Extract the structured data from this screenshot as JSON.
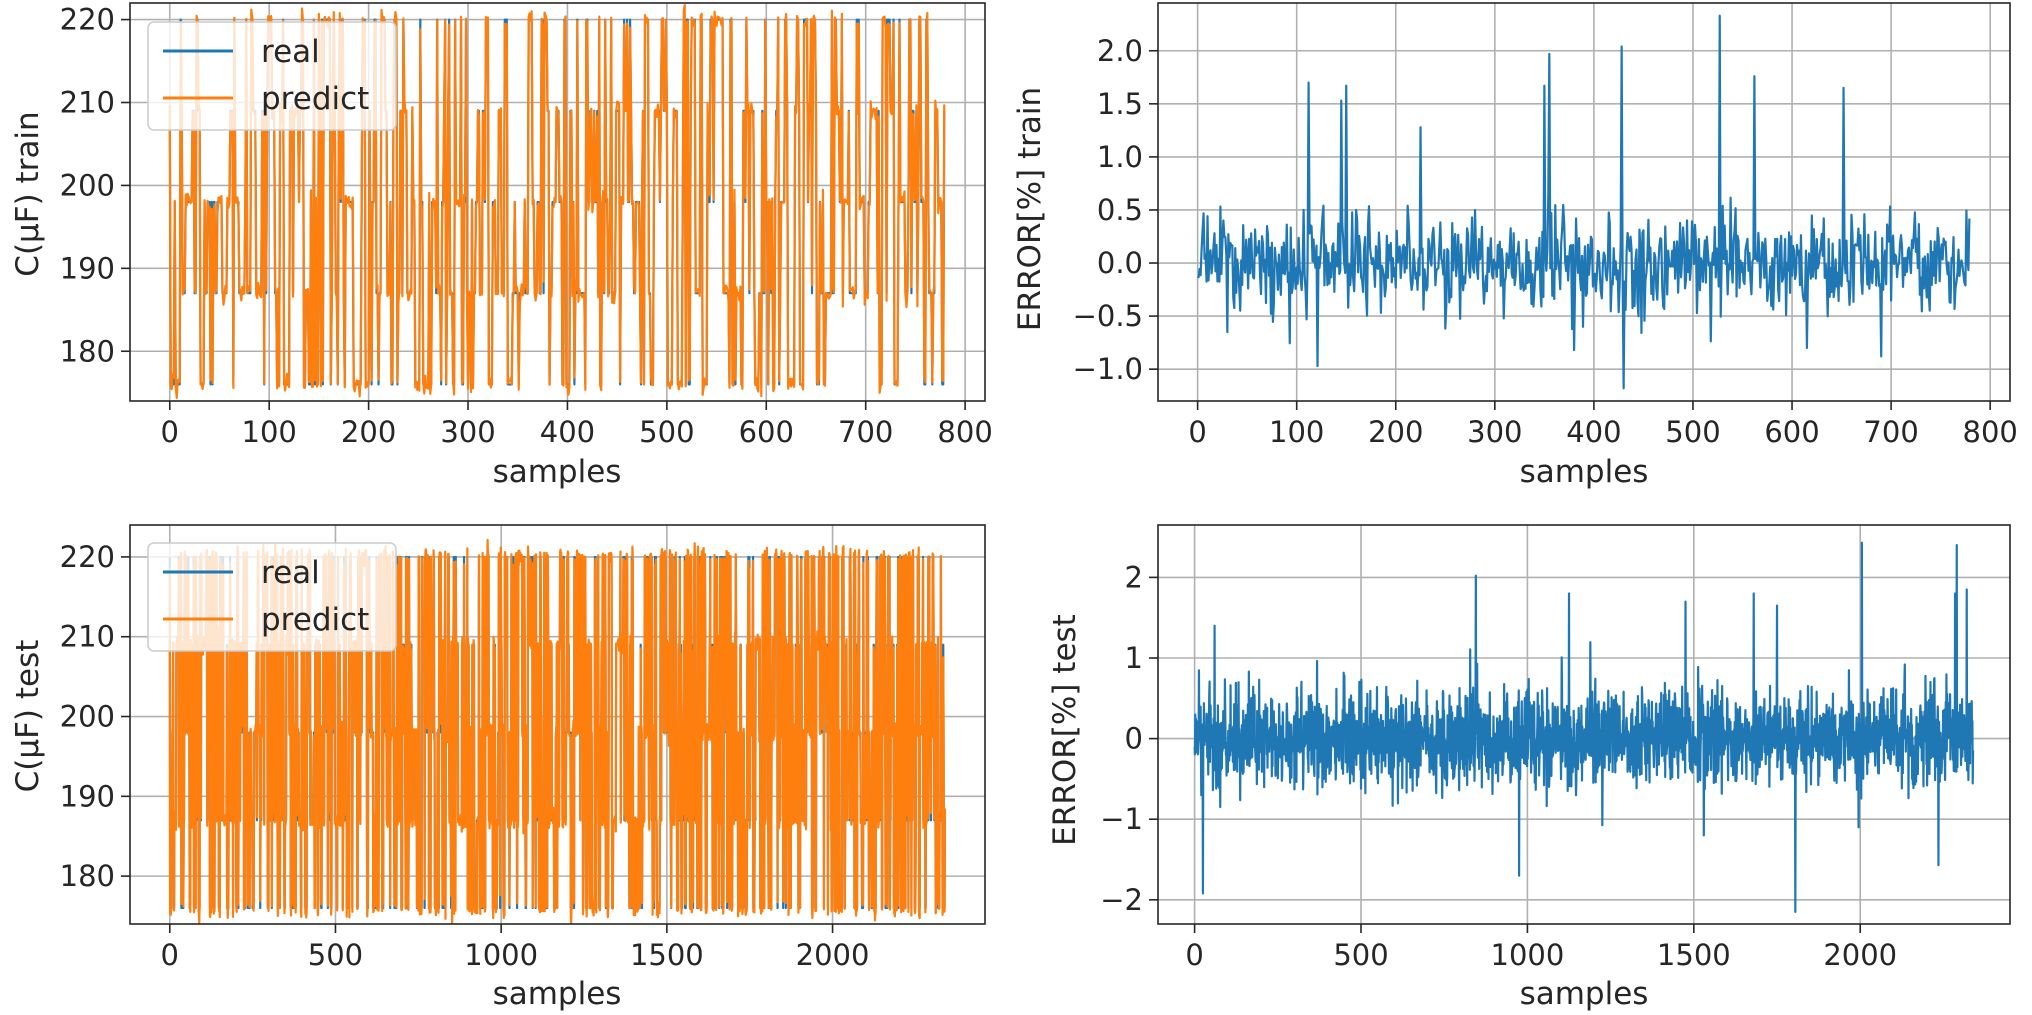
{
  "figure": {
    "description_panels": 4,
    "colors": {
      "real": "#1f77b4",
      "predict": "#ff7f0e",
      "error": "#1f77b4",
      "grid": "#b0b0b0",
      "axis": "#262626"
    }
  },
  "chart_data": [
    {
      "id": "cap-train",
      "type": "line",
      "xlabel": "samples",
      "ylabel": "C(μF) train",
      "xlim": [
        -40,
        820
      ],
      "ylim": [
        174,
        222
      ],
      "xticks": [
        0,
        100,
        200,
        300,
        400,
        500,
        600,
        700,
        800
      ],
      "yticks": [
        180,
        190,
        200,
        210,
        220
      ],
      "grid": true,
      "legend": {
        "placement": "upper-left",
        "entries": [
          "real",
          "predict"
        ]
      },
      "n_samples": 780,
      "levels": [
        176,
        187,
        198,
        209,
        220
      ],
      "series": [
        {
          "name": "real",
          "color": "#1f77b4",
          "description": "capacitance switching between ~176, 187, 198, 209, 220 μF"
        },
        {
          "name": "predict",
          "color": "#ff7f0e",
          "description": "prediction closely tracking real values with small noise"
        }
      ]
    },
    {
      "id": "err-train",
      "type": "line",
      "xlabel": "samples",
      "ylabel": "ERROR[%]  train",
      "xlim": [
        -40,
        820
      ],
      "ylim": [
        -1.3,
        2.45
      ],
      "xticks": [
        0,
        100,
        200,
        300,
        400,
        500,
        600,
        700,
        800
      ],
      "yticks": [
        -1.0,
        -0.5,
        0.0,
        0.5,
        1.0,
        1.5,
        2.0
      ],
      "ytick_labels": [
        "−1.0",
        "−0.5",
        "0.0",
        "0.5",
        "1.0",
        "1.5",
        "2.0"
      ],
      "grid": true,
      "n_samples": 780,
      "peaks": [
        [
          112,
          1.7
        ],
        [
          145,
          1.53
        ],
        [
          150,
          1.67
        ],
        [
          225,
          1.28
        ],
        [
          350,
          1.67
        ],
        [
          355,
          1.97
        ],
        [
          428,
          2.04
        ],
        [
          527,
          2.33
        ],
        [
          562,
          1.76
        ],
        [
          652,
          1.65
        ]
      ],
      "troughs": [
        [
          121,
          -0.97
        ],
        [
          430,
          -1.18
        ],
        [
          380,
          -0.82
        ],
        [
          615,
          -0.8
        ],
        [
          690,
          -0.88
        ]
      ],
      "series": [
        {
          "name": "error",
          "color": "#1f77b4"
        }
      ]
    },
    {
      "id": "cap-test",
      "type": "line",
      "xlabel": "samples",
      "ylabel": "C(μF) test",
      "xlim": [
        -120,
        2460
      ],
      "ylim": [
        174,
        224
      ],
      "xticks": [
        0,
        500,
        1000,
        1500,
        2000
      ],
      "yticks": [
        180,
        190,
        200,
        210,
        220
      ],
      "grid": true,
      "legend": {
        "placement": "upper-left",
        "entries": [
          "real",
          "predict"
        ]
      },
      "n_samples": 2340,
      "levels": [
        176,
        187,
        198,
        209,
        220
      ],
      "series": [
        {
          "name": "real",
          "color": "#1f77b4",
          "description": "capacitance switching between ~176, 187, 198, 209, 220 μF"
        },
        {
          "name": "predict",
          "color": "#ff7f0e",
          "description": "prediction closely tracking real values with small noise"
        }
      ]
    },
    {
      "id": "err-test",
      "type": "line",
      "xlabel": "samples",
      "ylabel": "ERROR[%] test",
      "xlim": [
        -110,
        2450
      ],
      "ylim": [
        -2.3,
        2.65
      ],
      "xticks": [
        0,
        500,
        1000,
        1500,
        2000
      ],
      "yticks": [
        -2,
        -1,
        0,
        1,
        2
      ],
      "ytick_labels": [
        "−2",
        "−1",
        "0",
        "1",
        "2"
      ],
      "grid": true,
      "n_samples": 2340,
      "peaks": [
        [
          60,
          1.4
        ],
        [
          845,
          2.02
        ],
        [
          1125,
          1.8
        ],
        [
          1475,
          1.7
        ],
        [
          1680,
          1.8
        ],
        [
          1750,
          1.65
        ],
        [
          2005,
          2.43
        ],
        [
          2290,
          2.4
        ],
        [
          2320,
          1.85
        ],
        [
          2285,
          1.8
        ]
      ],
      "troughs": [
        [
          25,
          -1.92
        ],
        [
          975,
          -1.7
        ],
        [
          1805,
          -2.15
        ],
        [
          2235,
          -1.57
        ],
        [
          1530,
          -1.2
        ],
        [
          1995,
          -1.1
        ]
      ],
      "series": [
        {
          "name": "error",
          "color": "#1f77b4"
        }
      ]
    }
  ]
}
